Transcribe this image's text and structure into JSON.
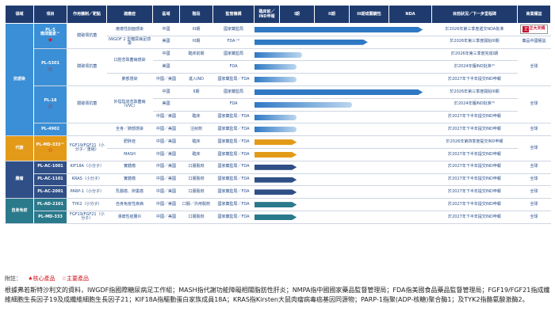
{
  "headers": {
    "area": "領域",
    "item": "項目",
    "mechanism": "作用機制／靶點",
    "indication": "適應症",
    "region": "區域",
    "stage": "階段",
    "regulator": "監管機構",
    "ind": "臨床前／IND申報",
    "p1": "I期",
    "p2": "II期",
    "p3": "III期或關鍵性",
    "nda": "NDA",
    "milestone": "目前狀況／下一步里程碑",
    "rights": "商業權益"
  },
  "colors": {
    "blue_dark": "#2f79c4",
    "blue_area": "#3a8fd6",
    "gold": "#e39a19",
    "navy": "#2f4f86",
    "teal": "#2b7a8c",
    "header": "#1f3b6e"
  },
  "areas": [
    {
      "id": "anti",
      "label": "抗感染",
      "color": "#3a8fd6"
    },
    {
      "id": "meta",
      "label": "代謝",
      "color": "#e39a19"
    },
    {
      "id": "onc",
      "label": "腫瘤",
      "color": "#2f4f86"
    },
    {
      "id": "auto",
      "label": "自身免疫",
      "color": "#2b7a8c"
    }
  ],
  "products": [
    {
      "name": "PL-5\n微球菌素™",
      "star": "filled"
    },
    {
      "name": "PL-5301",
      "star": "outline"
    },
    {
      "name": "PL-18",
      "star": "outline"
    },
    {
      "name": "PL-4902",
      "star": ""
    },
    {
      "name": "PL-MD-333™",
      "star": "outline"
    },
    {
      "name": "PL-AC-1001",
      "star": ""
    },
    {
      "name": "PL-AC-1101",
      "star": ""
    },
    {
      "name": "PL-AC-2001",
      "star": ""
    },
    {
      "name": "PL-AD-2101",
      "star": ""
    },
    {
      "name": "PL-MD-333",
      "star": ""
    }
  ],
  "rows": [
    {
      "mech": "膜破壞抗菌",
      "ind": "瘡瘍性創面感染",
      "region": "中國",
      "stage": "III期",
      "reg": "國家藥監局",
      "progress": 0.95,
      "milestone": "於2026年第三季度遞交NDA批准",
      "rights": "logo",
      "bar": "dark"
    },
    {
      "mech": "",
      "ind": "IWGDF 2 型糖尿病足感染",
      "region": "美國",
      "stage": "III期",
      "reg": "FDA ⁽¹⁾",
      "progress": 0.64,
      "milestone": "於2026年第三季度開始III期",
      "rights": "藥品中國權益",
      "bar": "dark"
    },
    {
      "mech": "膜破壞抗菌",
      "ind": "口腔念珠菌病感染",
      "region": "中國",
      "stage": "臨床前期",
      "reg": "國家藥監局",
      "progress": 0.27,
      "milestone": "於2026年第三季度完成I期",
      "rights": "全球",
      "bar": "light"
    },
    {
      "mech": "",
      "ind": "",
      "region": "美國",
      "stage": "",
      "reg": "FDA",
      "progress": 0.24,
      "milestone": "於2024年獲IND批准⁽²⁾",
      "rights": "",
      "bar": "light"
    },
    {
      "mech": "",
      "ind": "肺部感染",
      "region": "中國／美國",
      "stage": "進入IND",
      "reg": "國家藥監局／FDA",
      "progress": 0.24,
      "milestone": "於2027年下半年提交IND申報",
      "rights": "",
      "bar": "light"
    },
    {
      "mech": "膜破壞抗菌",
      "ind": "外陰陰道念珠菌病（VVC）",
      "region": "中國",
      "stage": "II期",
      "reg": "國家藥監局",
      "progress": 0.95,
      "milestone": "於2026年第三季度開始III期",
      "rights": "全球",
      "bar": "dark"
    },
    {
      "mech": "",
      "ind": "",
      "region": "美國",
      "stage": "",
      "reg": "FDA",
      "progress": 0.55,
      "milestone": "於2024年獲IND批准⁽³⁾",
      "rights": "",
      "bar": "light"
    },
    {
      "mech": "",
      "ind": "",
      "region": "中國／美國",
      "stage": "臨床",
      "reg": "國家藥監局／FDA",
      "progress": 0.24,
      "milestone": "於2027年下半年提交IND申報",
      "rights": "",
      "bar": "light"
    },
    {
      "mech": "",
      "ind": "全身／肺部感染",
      "region": "中國／美國",
      "stage": "注射劑",
      "reg": "國家藥監局／FDA",
      "progress": 0.24,
      "milestone": "於2027年下半年提交IND申報",
      "rights": "全球",
      "bar": "light"
    },
    {
      "mech": "FGF19/FGF21（小分子／重組）",
      "ind": "肥胖症",
      "region": "中國／美國",
      "stage": "臨床",
      "reg": "國家藥監局／FDA",
      "progress": 0.24,
      "milestone": "於2026年第四季度提交IND申報",
      "rights": "全球",
      "bar": "gold"
    },
    {
      "mech": "",
      "ind": "MASH",
      "region": "中國／美國",
      "stage": "臨床",
      "reg": "國家藥監局／FDA",
      "progress": 0.24,
      "milestone": "於2027年下半年提交IND申報",
      "rights": "",
      "bar": "gold"
    },
    {
      "mech": "KIF18A（小分子）",
      "ind": "實體瘤",
      "region": "中國／美國",
      "stage": "口服製劑",
      "reg": "國家藥監局／FDA",
      "progress": 0.24,
      "milestone": "於2027年下半年提交IND申報",
      "rights": "全球",
      "bar": "navy"
    },
    {
      "mech": "KRAS（小分子）",
      "ind": "實體瘤",
      "region": "中國／美國",
      "stage": "口服製劑",
      "reg": "國家藥監局／FDA",
      "progress": 0.24,
      "milestone": "於2027年下半年提交IND申報",
      "rights": "全球",
      "bar": "navy"
    },
    {
      "mech": "PARP-1（小分子）",
      "ind": "乳腺癌、卵巢癌",
      "region": "中國／美國",
      "stage": "口服製劑",
      "reg": "國家藥監局／FDA",
      "progress": 0.24,
      "milestone": "於2027年下半年提交IND申報",
      "rights": "全球",
      "bar": "navy"
    },
    {
      "mech": "TYK2（小分子）",
      "ind": "自身免疫性疾病",
      "region": "中國／美國",
      "stage": "口服／外用製劑",
      "reg": "國家藥監局／FDA",
      "progress": 0.24,
      "milestone": "於2027年下半年提交IND申報",
      "rights": "全球",
      "bar": "teal"
    },
    {
      "mech": "FGF19/FGF21（小分子）",
      "ind": "潰瘍性結腸炎",
      "region": "中國／美國",
      "stage": "口服製劑",
      "reg": "國家藥監局／FDA",
      "progress": 0.24,
      "milestone": "於2027年下半年提交IND申報",
      "rights": "全球",
      "bar": "teal"
    }
  ],
  "logo": {
    "text": "正大天晴",
    "sub": "CHIA TAI TIANQING"
  },
  "legend": {
    "label": "附註：",
    "core": "★核心產品",
    "key": "☆主要產品"
  },
  "footnote": "根據弗若斯特沙利文的資料，IWGDF指國際糖尿病足工作組；MASH指代謝功能障礙相關脂肪性肝炎；NMPA指中國國家藥品監督管理局；FDA指美國食品藥品監督管理局；FGF19/FGF21指成纖維細胞生長因子19及成纖維細胞生長因子21；KIF18A指驅動蛋白家族成員18A；KRAS指Kirsten大鼠肉瘤病毒癌基因同源物；PARP-1指聚(ADP-核糖)聚合酶1；及TYK2指酪氨酸激酶2。"
}
